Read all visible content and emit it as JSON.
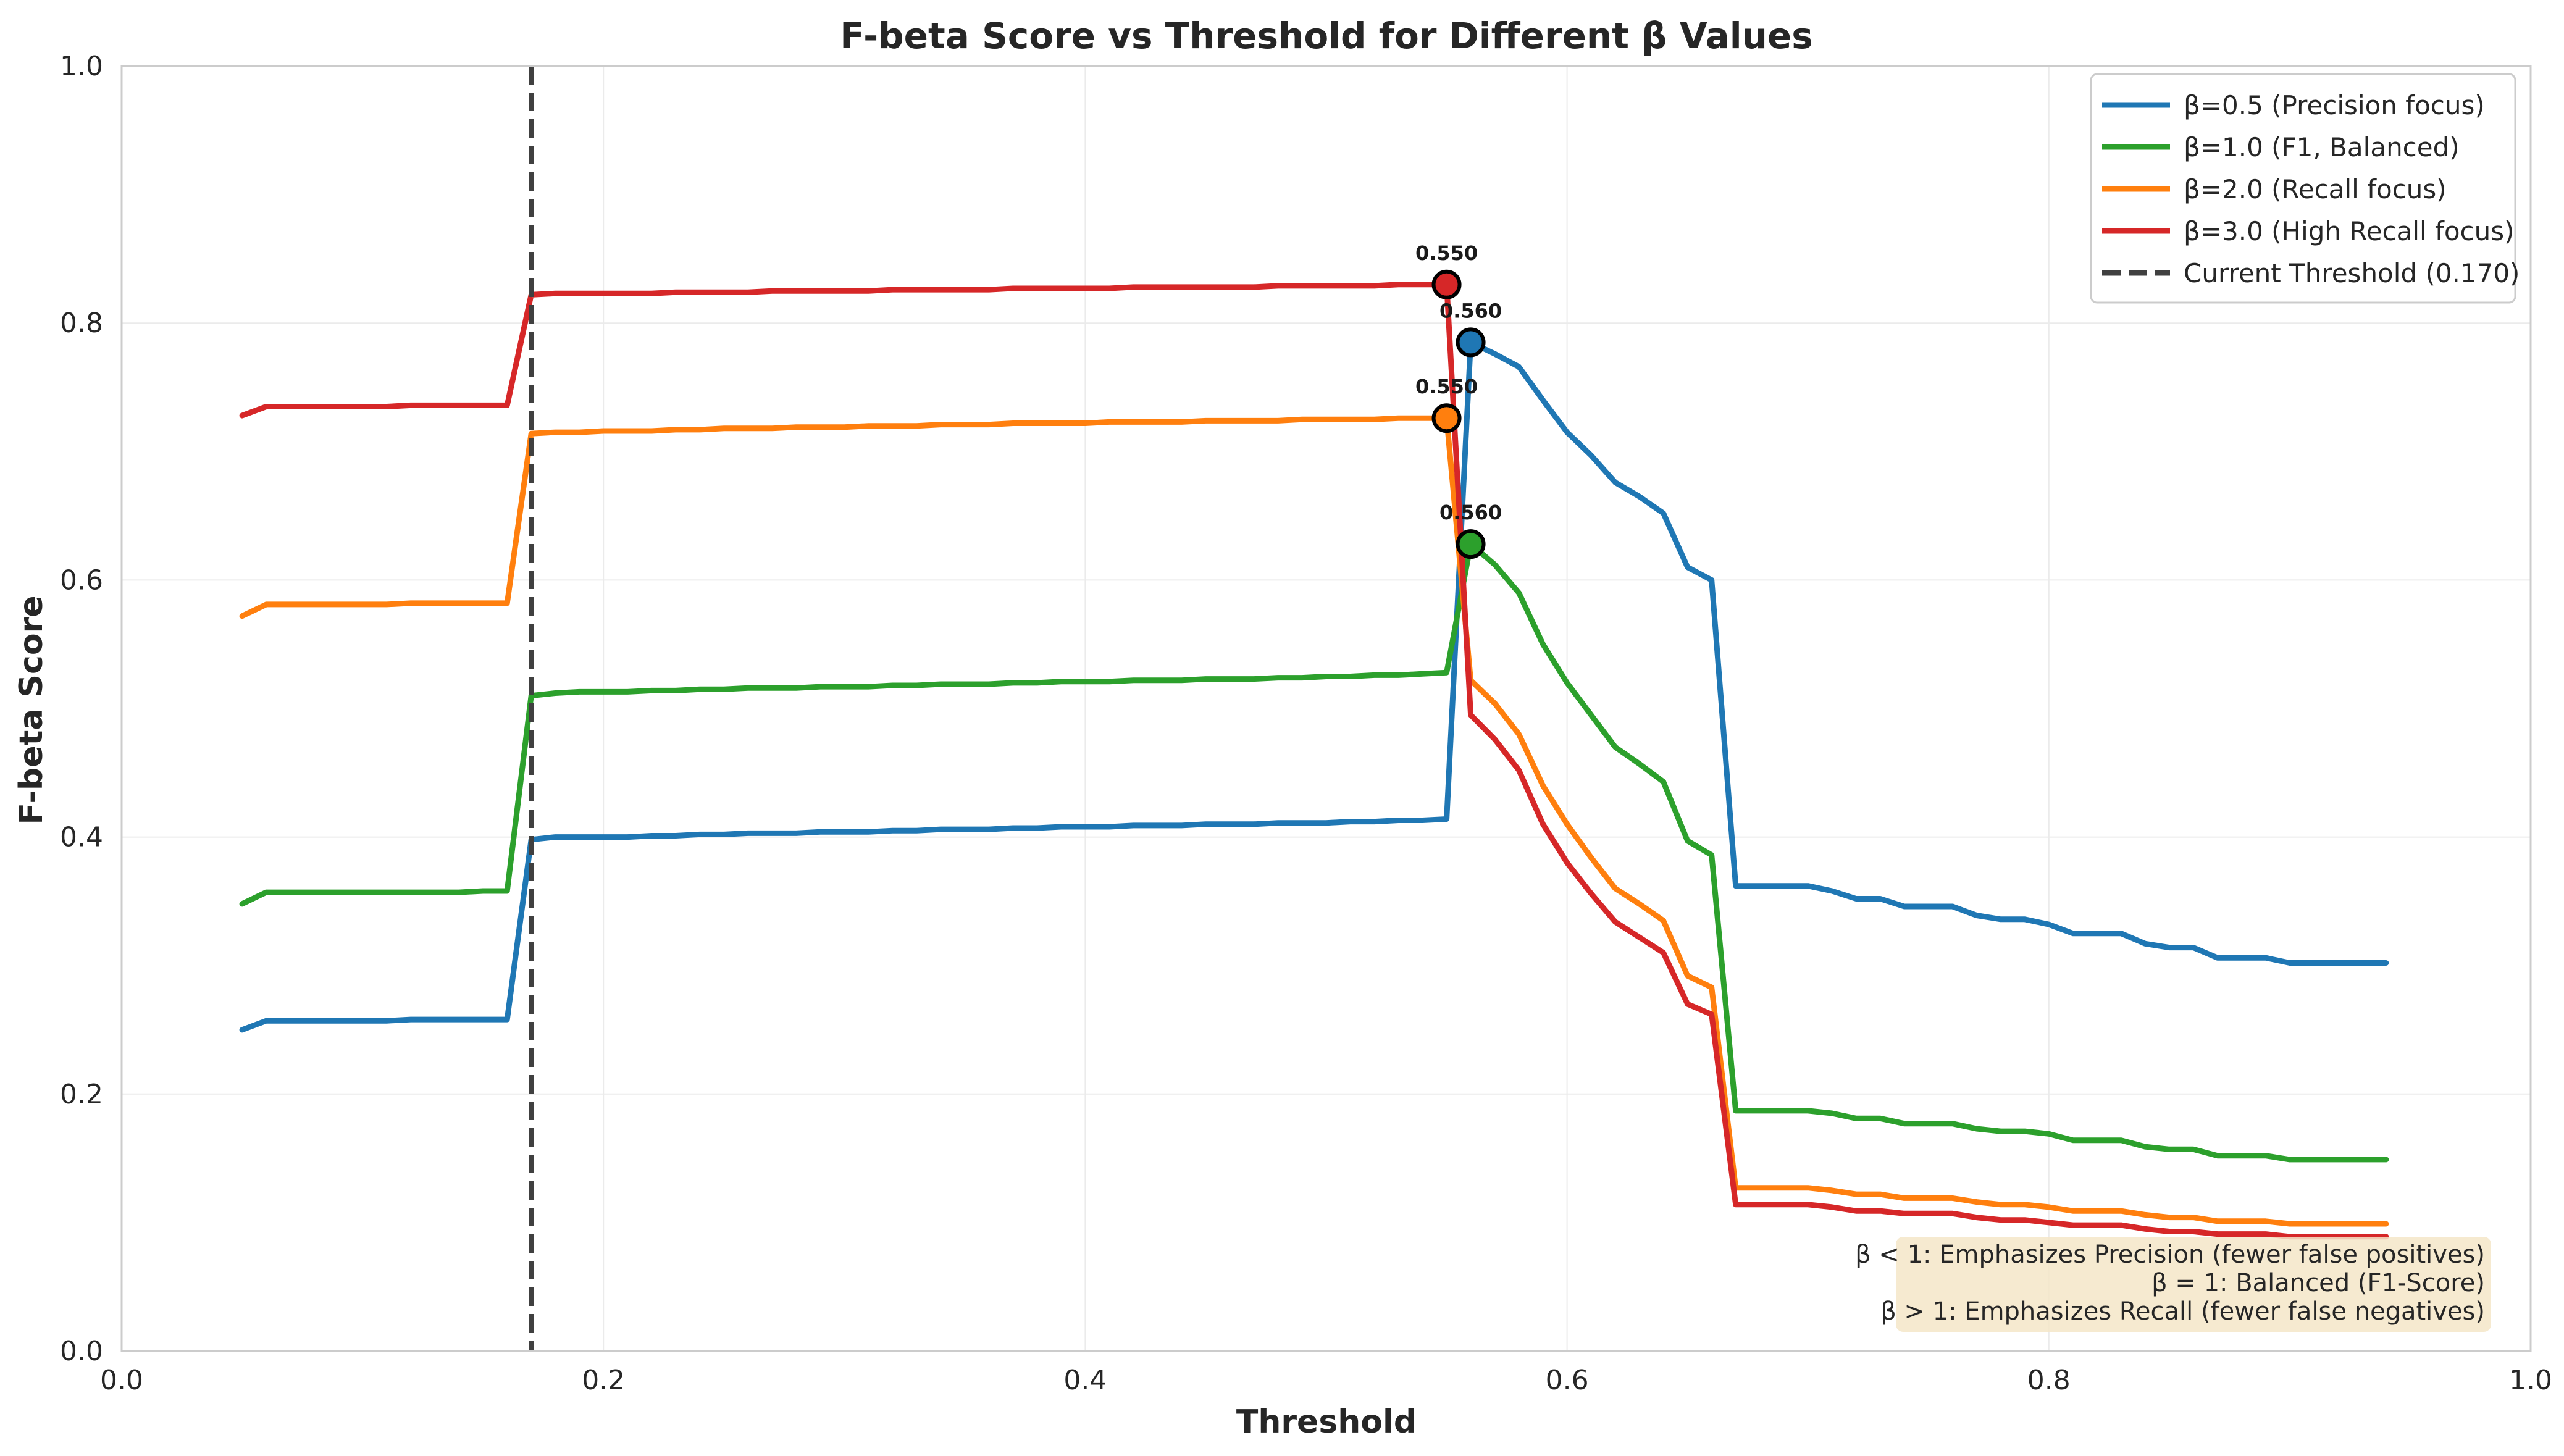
{
  "chart_data": {
    "type": "line",
    "title": "F-beta Score vs Threshold for Different β Values",
    "xlabel": "Threshold",
    "ylabel": "F-beta Score",
    "xlim": [
      0.0,
      1.0
    ],
    "ylim": [
      0.0,
      1.0
    ],
    "xticks": [
      "0.0",
      "0.2",
      "0.4",
      "0.6",
      "0.8",
      "1.0"
    ],
    "yticks": [
      "0.0",
      "0.2",
      "0.4",
      "0.6",
      "0.8",
      "1.0"
    ],
    "grid": true,
    "legend_position": "top-right",
    "x": [
      0.05,
      0.06,
      0.07,
      0.08,
      0.09,
      0.1,
      0.11,
      0.12,
      0.13,
      0.14,
      0.15,
      0.16,
      0.17,
      0.18,
      0.19,
      0.2,
      0.21,
      0.22,
      0.23,
      0.24,
      0.25,
      0.26,
      0.27,
      0.28,
      0.29,
      0.3,
      0.31,
      0.32,
      0.33,
      0.34,
      0.35,
      0.36,
      0.37,
      0.38,
      0.39,
      0.4,
      0.41,
      0.42,
      0.43,
      0.44,
      0.45,
      0.46,
      0.47,
      0.48,
      0.49,
      0.5,
      0.51,
      0.52,
      0.53,
      0.54,
      0.55,
      0.56,
      0.57,
      0.58,
      0.59,
      0.6,
      0.61,
      0.62,
      0.63,
      0.64,
      0.65,
      0.66,
      0.67,
      0.68,
      0.69,
      0.7,
      0.71,
      0.72,
      0.73,
      0.74,
      0.75,
      0.76,
      0.77,
      0.78,
      0.79,
      0.8,
      0.81,
      0.82,
      0.83,
      0.84,
      0.85,
      0.86,
      0.87,
      0.88,
      0.89,
      0.9,
      0.91,
      0.92,
      0.93,
      0.94
    ],
    "series": [
      {
        "name": "β=0.5 (Precision focus)",
        "color": "#1f77b4",
        "values": [
          0.25,
          0.257,
          0.257,
          0.257,
          0.257,
          0.257,
          0.257,
          0.258,
          0.258,
          0.258,
          0.258,
          0.258,
          0.398,
          0.4,
          0.4,
          0.4,
          0.4,
          0.401,
          0.401,
          0.402,
          0.402,
          0.403,
          0.403,
          0.403,
          0.404,
          0.404,
          0.404,
          0.405,
          0.405,
          0.406,
          0.406,
          0.406,
          0.407,
          0.407,
          0.408,
          0.408,
          0.408,
          0.409,
          0.409,
          0.409,
          0.41,
          0.41,
          0.41,
          0.411,
          0.411,
          0.411,
          0.412,
          0.412,
          0.413,
          0.413,
          0.414,
          0.785,
          0.776,
          0.766,
          0.74,
          0.715,
          0.697,
          0.676,
          0.665,
          0.652,
          0.61,
          0.6,
          0.362,
          0.362,
          0.362,
          0.362,
          0.358,
          0.352,
          0.352,
          0.346,
          0.346,
          0.346,
          0.339,
          0.336,
          0.336,
          0.332,
          0.325,
          0.325,
          0.325,
          0.317,
          0.314,
          0.314,
          0.306,
          0.306,
          0.306,
          0.302,
          0.302,
          0.302,
          0.302,
          0.302
        ]
      },
      {
        "name": "β=1.0 (F1, Balanced)",
        "color": "#2ca02c",
        "values": [
          0.348,
          0.357,
          0.357,
          0.357,
          0.357,
          0.357,
          0.357,
          0.357,
          0.357,
          0.357,
          0.358,
          0.358,
          0.51,
          0.512,
          0.513,
          0.513,
          0.513,
          0.514,
          0.514,
          0.515,
          0.515,
          0.516,
          0.516,
          0.516,
          0.517,
          0.517,
          0.517,
          0.518,
          0.518,
          0.519,
          0.519,
          0.519,
          0.52,
          0.52,
          0.521,
          0.521,
          0.521,
          0.522,
          0.522,
          0.522,
          0.523,
          0.523,
          0.523,
          0.524,
          0.524,
          0.525,
          0.525,
          0.526,
          0.526,
          0.527,
          0.528,
          0.628,
          0.612,
          0.59,
          0.55,
          0.52,
          0.495,
          0.47,
          0.457,
          0.443,
          0.397,
          0.386,
          0.187,
          0.187,
          0.187,
          0.187,
          0.185,
          0.181,
          0.181,
          0.177,
          0.177,
          0.177,
          0.173,
          0.171,
          0.171,
          0.169,
          0.164,
          0.164,
          0.164,
          0.159,
          0.157,
          0.157,
          0.152,
          0.152,
          0.152,
          0.149,
          0.149,
          0.149,
          0.149,
          0.149
        ]
      },
      {
        "name": "β=2.0 (Recall focus)",
        "color": "#ff7f0e",
        "values": [
          0.572,
          0.581,
          0.581,
          0.581,
          0.581,
          0.581,
          0.581,
          0.582,
          0.582,
          0.582,
          0.582,
          0.582,
          0.714,
          0.715,
          0.715,
          0.716,
          0.716,
          0.716,
          0.717,
          0.717,
          0.718,
          0.718,
          0.718,
          0.719,
          0.719,
          0.719,
          0.72,
          0.72,
          0.72,
          0.721,
          0.721,
          0.721,
          0.722,
          0.722,
          0.722,
          0.722,
          0.723,
          0.723,
          0.723,
          0.723,
          0.724,
          0.724,
          0.724,
          0.724,
          0.725,
          0.725,
          0.725,
          0.725,
          0.726,
          0.726,
          0.726,
          0.522,
          0.504,
          0.48,
          0.44,
          0.41,
          0.384,
          0.36,
          0.348,
          0.335,
          0.292,
          0.283,
          0.127,
          0.127,
          0.127,
          0.127,
          0.125,
          0.122,
          0.122,
          0.119,
          0.119,
          0.119,
          0.116,
          0.114,
          0.114,
          0.112,
          0.109,
          0.109,
          0.109,
          0.106,
          0.104,
          0.104,
          0.101,
          0.101,
          0.101,
          0.099,
          0.099,
          0.099,
          0.099,
          0.099
        ]
      },
      {
        "name": "β=3.0 (High Recall focus)",
        "color": "#d62728",
        "values": [
          0.728,
          0.735,
          0.735,
          0.735,
          0.735,
          0.735,
          0.735,
          0.736,
          0.736,
          0.736,
          0.736,
          0.736,
          0.822,
          0.823,
          0.823,
          0.823,
          0.823,
          0.823,
          0.824,
          0.824,
          0.824,
          0.824,
          0.825,
          0.825,
          0.825,
          0.825,
          0.825,
          0.826,
          0.826,
          0.826,
          0.826,
          0.826,
          0.827,
          0.827,
          0.827,
          0.827,
          0.827,
          0.828,
          0.828,
          0.828,
          0.828,
          0.828,
          0.828,
          0.829,
          0.829,
          0.829,
          0.829,
          0.829,
          0.83,
          0.83,
          0.83,
          0.495,
          0.476,
          0.452,
          0.41,
          0.38,
          0.356,
          0.334,
          0.322,
          0.31,
          0.27,
          0.262,
          0.114,
          0.114,
          0.114,
          0.114,
          0.112,
          0.109,
          0.109,
          0.107,
          0.107,
          0.107,
          0.104,
          0.102,
          0.102,
          0.1,
          0.098,
          0.098,
          0.098,
          0.095,
          0.093,
          0.093,
          0.091,
          0.091,
          0.091,
          0.089,
          0.089,
          0.089,
          0.089,
          0.089
        ]
      }
    ],
    "vline": {
      "label": "Current Threshold (0.170)",
      "x": 0.17,
      "color": "#404040"
    },
    "peaks": [
      {
        "series": 0,
        "x": 0.56,
        "y": 0.785,
        "label": "0.560"
      },
      {
        "series": 1,
        "x": 0.56,
        "y": 0.628,
        "label": "0.560"
      },
      {
        "series": 2,
        "x": 0.55,
        "y": 0.726,
        "label": "0.550"
      },
      {
        "series": 3,
        "x": 0.55,
        "y": 0.83,
        "label": "0.550"
      }
    ],
    "annotation": {
      "lines": [
        "β < 1: Emphasizes Precision (fewer false positives)",
        "β = 1: Balanced (F1-Score)",
        "β > 1: Emphasizes Recall (fewer false negatives)"
      ],
      "position": "bottom-right",
      "background": "#f5e6c8"
    }
  }
}
